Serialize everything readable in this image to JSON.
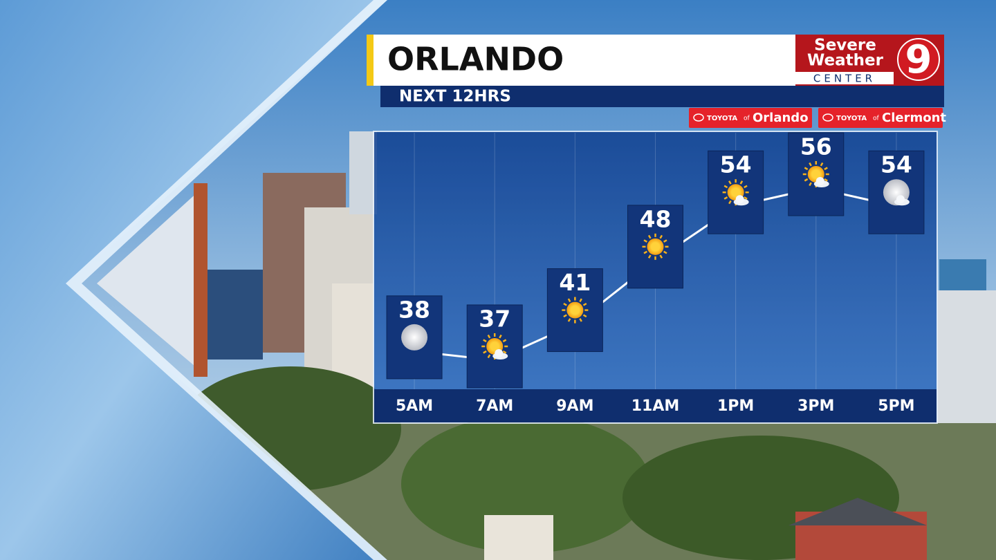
{
  "chart_data": {
    "type": "line",
    "title": "ORLANDO",
    "subtitle": "NEXT 12HRS",
    "categories": [
      "5AM",
      "7AM",
      "9AM",
      "11AM",
      "1PM",
      "3PM",
      "5PM"
    ],
    "values": [
      38,
      37,
      41,
      48,
      54,
      56,
      54
    ],
    "color": "#ffffff"
  },
  "logo": {
    "line1": "Severe",
    "line2": "Weather",
    "line3": "CENTER",
    "number": "9"
  },
  "sponsors": [
    {
      "brand": "TOYOTA",
      "of": "of",
      "name": "Orlando"
    },
    {
      "brand": "TOYOTA",
      "of": "of",
      "name": "Clermont"
    }
  ]
}
